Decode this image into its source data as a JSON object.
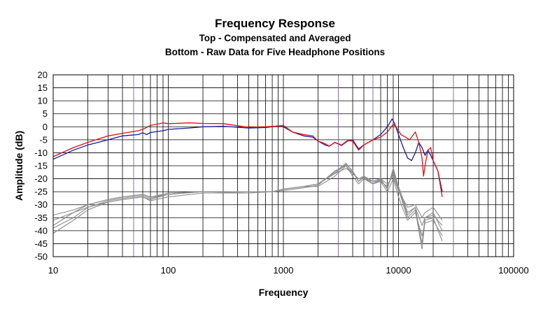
{
  "titles": {
    "main": "Frequency Response",
    "sub1": "Top -  Compensated and Averaged",
    "sub2": "Bottom - Raw Data for Five Headphone Positions"
  },
  "colors": {
    "compensated_blue": "#1a1a9e",
    "averaged_red": "#e01010",
    "raw_gray": "#8c8c8c",
    "grid": "#000000",
    "violet_grid": "#6a4fa0"
  },
  "chart_data": {
    "type": "line",
    "title": "Frequency Response",
    "subtitle": [
      "Top -  Compensated and Averaged",
      "Bottom - Raw Data for Five Headphone Positions"
    ],
    "xlabel": "Frequency",
    "ylabel": "Amplitude (dB)",
    "xscale": "log",
    "xlim": [
      10,
      100000
    ],
    "ylim": [
      -50,
      20
    ],
    "xticks": [
      10,
      100,
      1000,
      10000,
      100000
    ],
    "xtick_labels": [
      "10",
      "100",
      "1000",
      "10000",
      "100000"
    ],
    "yticks": [
      20,
      15,
      10,
      5,
      0,
      -5,
      -10,
      -15,
      -20,
      -25,
      -30,
      -35,
      -40,
      -45,
      -50
    ],
    "grid": true,
    "legend": "none",
    "series": [
      {
        "color": "#1a1a9e",
        "points": [
          [
            10,
            -12.5
          ],
          [
            15,
            -9
          ],
          [
            20,
            -7
          ],
          [
            30,
            -5
          ],
          [
            40,
            -3.5
          ],
          [
            55,
            -3
          ],
          [
            60,
            -2.3
          ],
          [
            65,
            -3
          ],
          [
            70,
            -2.2
          ],
          [
            90,
            -1.5
          ],
          [
            100,
            -1
          ],
          [
            150,
            -0.5
          ],
          [
            200,
            0
          ],
          [
            300,
            0.2
          ],
          [
            500,
            -0.5
          ],
          [
            700,
            -0.3
          ],
          [
            900,
            0.3
          ],
          [
            1000,
            0
          ],
          [
            1200,
            -2
          ],
          [
            1500,
            -3.5
          ],
          [
            1800,
            -4
          ],
          [
            2000,
            -5.5
          ],
          [
            2300,
            -7
          ],
          [
            2500,
            -7.5
          ],
          [
            2800,
            -6
          ],
          [
            3200,
            -7.2
          ],
          [
            3600,
            -5.5
          ],
          [
            4000,
            -5
          ],
          [
            4500,
            -8.5
          ],
          [
            5000,
            -7
          ],
          [
            6000,
            -5
          ],
          [
            7000,
            -3
          ],
          [
            8000,
            0
          ],
          [
            8800,
            3
          ],
          [
            9300,
            1
          ],
          [
            10000,
            -3
          ],
          [
            11000,
            -8
          ],
          [
            12000,
            -12
          ],
          [
            13000,
            -13
          ],
          [
            14000,
            -10
          ],
          [
            15000,
            -6
          ],
          [
            16000,
            -8
          ],
          [
            17000,
            -11
          ],
          [
            18000,
            -9
          ],
          [
            19000,
            -11
          ],
          [
            20000,
            -13
          ],
          [
            22000,
            -17
          ],
          [
            24000,
            -25
          ]
        ]
      },
      {
        "color": "#e01010",
        "points": [
          [
            10,
            -11.5
          ],
          [
            15,
            -8
          ],
          [
            20,
            -6
          ],
          [
            30,
            -3.5
          ],
          [
            40,
            -2.5
          ],
          [
            55,
            -1.5
          ],
          [
            60,
            -1
          ],
          [
            70,
            0.5
          ],
          [
            90,
            1.5
          ],
          [
            100,
            1.2
          ],
          [
            150,
            1.5
          ],
          [
            200,
            1.3
          ],
          [
            300,
            1.2
          ],
          [
            500,
            -0.2
          ],
          [
            700,
            0
          ],
          [
            900,
            0.3
          ],
          [
            1000,
            0.5
          ],
          [
            1200,
            -2
          ],
          [
            1500,
            -3
          ],
          [
            1800,
            -3.5
          ],
          [
            2000,
            -5.5
          ],
          [
            2300,
            -6.5
          ],
          [
            2500,
            -7.5
          ],
          [
            2800,
            -6
          ],
          [
            3200,
            -7
          ],
          [
            3600,
            -5.3
          ],
          [
            4000,
            -5.5
          ],
          [
            4500,
            -9
          ],
          [
            5000,
            -7
          ],
          [
            6000,
            -5
          ],
          [
            7000,
            -4
          ],
          [
            8000,
            -2
          ],
          [
            9000,
            1
          ],
          [
            9500,
            0
          ],
          [
            10500,
            -3
          ],
          [
            11500,
            -4
          ],
          [
            12500,
            -5
          ],
          [
            14000,
            -2
          ],
          [
            15000,
            -6
          ],
          [
            16000,
            -12
          ],
          [
            16500,
            -19
          ],
          [
            17000,
            -15
          ],
          [
            18000,
            -9
          ],
          [
            19000,
            -8
          ],
          [
            20000,
            -13
          ],
          [
            22000,
            -17
          ],
          [
            24000,
            -27
          ]
        ]
      },
      {
        "color": "#8c8c8c",
        "points": [
          [
            10,
            -38
          ],
          [
            15,
            -33
          ],
          [
            20,
            -30
          ],
          [
            30,
            -28
          ],
          [
            40,
            -27
          ],
          [
            60,
            -26
          ],
          [
            70,
            -27
          ],
          [
            100,
            -26
          ],
          [
            200,
            -25
          ],
          [
            500,
            -25
          ],
          [
            800,
            -25
          ],
          [
            1000,
            -24
          ],
          [
            1500,
            -23
          ],
          [
            2000,
            -22
          ],
          [
            2800,
            -18
          ],
          [
            3500,
            -14.5
          ],
          [
            4000,
            -17
          ],
          [
            4500,
            -21
          ],
          [
            5000,
            -19
          ],
          [
            6000,
            -22
          ],
          [
            7000,
            -20
          ],
          [
            8000,
            -24
          ],
          [
            9000,
            -16
          ],
          [
            10000,
            -23
          ],
          [
            11000,
            -28
          ],
          [
            12000,
            -33
          ],
          [
            14000,
            -31
          ],
          [
            16000,
            -38
          ],
          [
            17000,
            -35
          ],
          [
            20000,
            -34
          ],
          [
            24000,
            -38
          ]
        ]
      },
      {
        "color": "#8c8c8c",
        "points": [
          [
            10,
            -41
          ],
          [
            15,
            -36
          ],
          [
            20,
            -32
          ],
          [
            30,
            -29
          ],
          [
            40,
            -28
          ],
          [
            60,
            -27
          ],
          [
            70,
            -28.5
          ],
          [
            100,
            -27
          ],
          [
            200,
            -25.5
          ],
          [
            500,
            -25.5
          ],
          [
            800,
            -25
          ],
          [
            1000,
            -24.5
          ],
          [
            1500,
            -23.5
          ],
          [
            2000,
            -22.5
          ],
          [
            2800,
            -17
          ],
          [
            3500,
            -15
          ],
          [
            4000,
            -18
          ],
          [
            4500,
            -20
          ],
          [
            5000,
            -20
          ],
          [
            6000,
            -21
          ],
          [
            7000,
            -21
          ],
          [
            8000,
            -23
          ],
          [
            9000,
            -18
          ],
          [
            10000,
            -24
          ],
          [
            11000,
            -30
          ],
          [
            12000,
            -35
          ],
          [
            14000,
            -32
          ],
          [
            16000,
            -47
          ],
          [
            17000,
            -36
          ],
          [
            20000,
            -35
          ],
          [
            24000,
            -44
          ]
        ]
      },
      {
        "color": "#8c8c8c",
        "points": [
          [
            10,
            -34
          ],
          [
            15,
            -32
          ],
          [
            20,
            -30
          ],
          [
            30,
            -28
          ],
          [
            40,
            -27
          ],
          [
            60,
            -26
          ],
          [
            70,
            -27
          ],
          [
            100,
            -25.5
          ],
          [
            200,
            -25
          ],
          [
            500,
            -25
          ],
          [
            800,
            -25
          ],
          [
            1000,
            -24
          ],
          [
            1500,
            -23
          ],
          [
            2000,
            -22
          ],
          [
            2800,
            -18
          ],
          [
            3500,
            -16
          ],
          [
            4000,
            -18
          ],
          [
            4500,
            -20
          ],
          [
            5000,
            -19
          ],
          [
            6000,
            -21
          ],
          [
            7000,
            -20
          ],
          [
            8000,
            -22
          ],
          [
            9000,
            -19
          ],
          [
            10000,
            -25
          ],
          [
            11000,
            -28
          ],
          [
            12000,
            -31
          ],
          [
            14000,
            -30
          ],
          [
            16000,
            -35
          ],
          [
            17000,
            -33
          ],
          [
            20000,
            -31
          ],
          [
            24000,
            -36
          ]
        ]
      },
      {
        "color": "#8c8c8c",
        "points": [
          [
            10,
            -36
          ],
          [
            15,
            -33
          ],
          [
            20,
            -31
          ],
          [
            30,
            -29
          ],
          [
            40,
            -28
          ],
          [
            60,
            -27
          ],
          [
            70,
            -28
          ],
          [
            100,
            -26
          ],
          [
            200,
            -25
          ],
          [
            500,
            -25.5
          ],
          [
            800,
            -25
          ],
          [
            1000,
            -24
          ],
          [
            1500,
            -23
          ],
          [
            2000,
            -23
          ],
          [
            2800,
            -19
          ],
          [
            3500,
            -15
          ],
          [
            4000,
            -19
          ],
          [
            4500,
            -22
          ],
          [
            5000,
            -20
          ],
          [
            6000,
            -22
          ],
          [
            7000,
            -21
          ],
          [
            8000,
            -25
          ],
          [
            9000,
            -20
          ],
          [
            10000,
            -27
          ],
          [
            11000,
            -32
          ],
          [
            12000,
            -36
          ],
          [
            14000,
            -33
          ],
          [
            16000,
            -42
          ],
          [
            17000,
            -37
          ],
          [
            20000,
            -36
          ],
          [
            24000,
            -42
          ]
        ]
      },
      {
        "color": "#8c8c8c",
        "points": [
          [
            10,
            -39
          ],
          [
            15,
            -35
          ],
          [
            20,
            -31
          ],
          [
            30,
            -28.5
          ],
          [
            40,
            -27.5
          ],
          [
            60,
            -26.5
          ],
          [
            70,
            -27.5
          ],
          [
            100,
            -26
          ],
          [
            200,
            -25
          ],
          [
            500,
            -25
          ],
          [
            800,
            -25
          ],
          [
            1000,
            -24
          ],
          [
            1500,
            -23
          ],
          [
            2000,
            -22
          ],
          [
            2800,
            -17.5
          ],
          [
            3500,
            -14
          ],
          [
            4000,
            -17.5
          ],
          [
            4500,
            -21
          ],
          [
            5000,
            -19.5
          ],
          [
            6000,
            -22
          ],
          [
            7000,
            -20.5
          ],
          [
            8000,
            -23.5
          ],
          [
            9000,
            -17
          ],
          [
            10000,
            -24
          ],
          [
            11000,
            -29
          ],
          [
            12000,
            -34
          ],
          [
            14000,
            -31
          ],
          [
            16000,
            -45
          ],
          [
            17000,
            -35
          ],
          [
            20000,
            -33
          ],
          [
            24000,
            -40
          ]
        ]
      }
    ]
  }
}
